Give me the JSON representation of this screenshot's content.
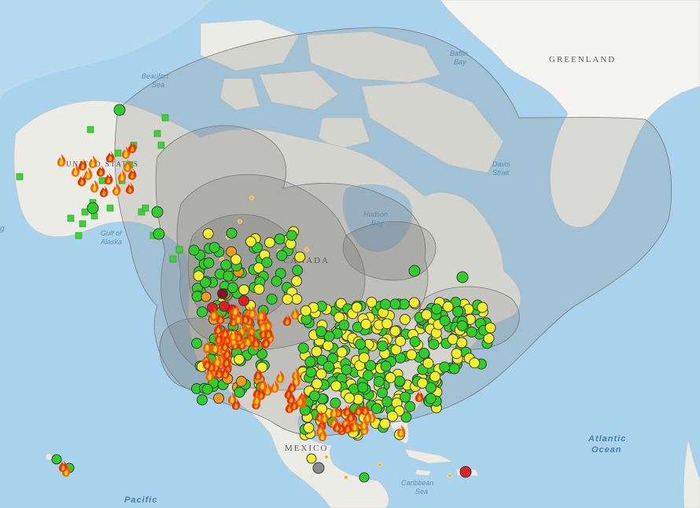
{
  "labels": {
    "greenland": "GREENLAND",
    "canada": "CANADA",
    "mexico": "MEXICO",
    "united_states": "UNITED STATES",
    "baffin_bay_1": "Baffin",
    "baffin_bay_2": "Bay",
    "beaufort_sea_1": "Beaufort",
    "beaufort_sea_2": "Sea",
    "davis_strait_1": "Davis",
    "davis_strait_2": "Strait",
    "hudson_bay_1": "Hudson",
    "hudson_bay_2": "Bay",
    "gulf_of_alaska_1": "Gulf of",
    "gulf_of_alaska_2": "Alaska",
    "caribbean_sea_1": "Caribbean",
    "caribbean_sea_2": "Sea",
    "atlantic_ocean_1": "Atlantic",
    "atlantic_ocean_2": "Ocean",
    "pacific": "Pacific",
    "edge_label": "g"
  },
  "colors": {
    "water": "#a9d3ec",
    "land": "#ecece6",
    "smoke": "#8e8e8e",
    "monitor_good": "#2fcf2a",
    "monitor_moderate": "#f5f02a",
    "monitor_unhealthy_sg": "#f59a1a",
    "monitor_unhealthy": "#e02020",
    "monitor_very_unhealthy": "#8a1028",
    "sensor_good": "#3fd23a",
    "fire_outer": "#ff6a00",
    "fire_inner": "#ffd21a"
  },
  "icons": {
    "fire": "fire-icon",
    "monitor": "circle-marker-icon",
    "sensor": "square-marker-icon",
    "hotspot": "dot-marker-icon"
  }
}
